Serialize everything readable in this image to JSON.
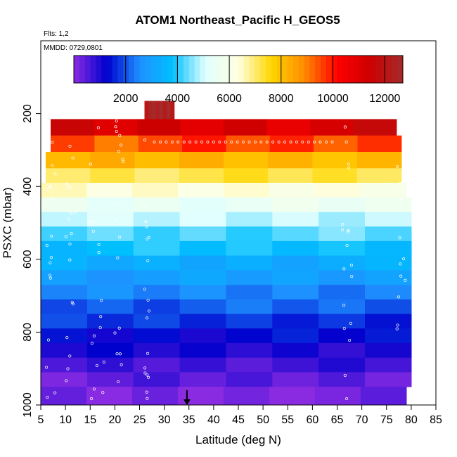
{
  "chart_data": {
    "type": "heatmap",
    "title": "ATOM1 Northeast_Pacific H_GEOS5",
    "flights_note": "Flts: 1,2",
    "date_note": "MMDD: 0729,0801",
    "xlabel": "Latitude (deg N)",
    "ylabel": "PSXC (mbar)",
    "xlim": [
      5,
      85
    ],
    "ylim": [
      1000,
      0
    ],
    "x_ticks": [
      "5",
      "10",
      "15",
      "20",
      "25",
      "30",
      "35",
      "40",
      "45",
      "50",
      "55",
      "60",
      "65",
      "70",
      "75",
      "80",
      "85"
    ],
    "y_ticks": [
      "200",
      "400",
      "600",
      "800",
      "1000"
    ],
    "colorbar": {
      "min": 0,
      "max": 12700,
      "ticks": [
        "2000",
        "4000",
        "6000",
        "8000",
        "10000",
        "12000"
      ],
      "colors": [
        "#8a2be2",
        "#0000cd",
        "#1e90ff",
        "#00bfff",
        "#e0ffff",
        "#ffffe0",
        "#ffd700",
        "#ff8c00",
        "#ff0000",
        "#cd0000",
        "#a52a2a"
      ]
    },
    "layers": [
      {
        "p_top": 165,
        "p_bot": 215,
        "x0": 26,
        "x1": 32,
        "value": 12500
      },
      {
        "p_top": 215,
        "p_bot": 260,
        "x0": 7,
        "x1": 77,
        "value": 11200
      },
      {
        "p_top": 260,
        "p_bot": 305,
        "x0": 7,
        "x1": 78,
        "value": 9500
      },
      {
        "p_top": 305,
        "p_bot": 350,
        "x0": 6,
        "x1": 78,
        "value": 8200
      },
      {
        "p_top": 350,
        "p_bot": 390,
        "x0": 6,
        "x1": 78,
        "value": 7200
      },
      {
        "p_top": 390,
        "p_bot": 430,
        "x0": 5,
        "x1": 79,
        "value": 6300
      },
      {
        "p_top": 430,
        "p_bot": 470,
        "x0": 5,
        "x1": 80,
        "value": 5500
      },
      {
        "p_top": 470,
        "p_bot": 510,
        "x0": 5,
        "x1": 80,
        "value": 4900
      },
      {
        "p_top": 510,
        "p_bot": 550,
        "x0": 5,
        "x1": 80,
        "value": 4300
      },
      {
        "p_top": 550,
        "p_bot": 590,
        "x0": 5,
        "x1": 80,
        "value": 3800
      },
      {
        "p_top": 590,
        "p_bot": 630,
        "x0": 5,
        "x1": 80,
        "value": 3300
      },
      {
        "p_top": 630,
        "p_bot": 670,
        "x0": 5,
        "x1": 80,
        "value": 2900
      },
      {
        "p_top": 670,
        "p_bot": 710,
        "x0": 5,
        "x1": 80,
        "value": 2500
      },
      {
        "p_top": 710,
        "p_bot": 750,
        "x0": 5,
        "x1": 80,
        "value": 2100
      },
      {
        "p_top": 750,
        "p_bot": 790,
        "x0": 5,
        "x1": 80,
        "value": 1700
      },
      {
        "p_top": 790,
        "p_bot": 830,
        "x0": 5,
        "x1": 80,
        "value": 1300
      },
      {
        "p_top": 830,
        "p_bot": 870,
        "x0": 5,
        "x1": 80,
        "value": 1000
      },
      {
        "p_top": 870,
        "p_bot": 910,
        "x0": 5,
        "x1": 80,
        "value": 700
      },
      {
        "p_top": 910,
        "p_bot": 950,
        "x0": 5,
        "x1": 80,
        "value": 400
      },
      {
        "p_top": 950,
        "p_bot": 1000,
        "x0": 5,
        "x1": 79,
        "value": 150
      }
    ],
    "arrow_marker_latitude": 34.6
  }
}
